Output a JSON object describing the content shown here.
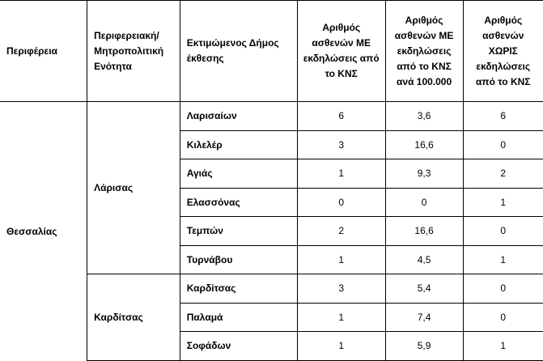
{
  "headers": [
    "Περιφέρεια",
    "Περιφερειακή/ Μητροπολιτική Ενότητα",
    "Εκτιμώμενος Δήμος έκθεσης",
    "Αριθμός ασθενών ΜΕ εκδηλώσεις από το ΚΝΣ",
    "Αριθμός ασθενών ΜΕ εκδηλώσεις από το ΚΝΣ ανά 100.000",
    "Αριθμός ασθενών ΧΩΡΙΣ εκδηλώσεις από το ΚΝΣ"
  ],
  "region": "Θεσσαλίας",
  "units": [
    {
      "name": "Λάρισας",
      "rows": [
        {
          "municipality": "Λαρισαίων",
          "with_kns": "6",
          "per_100k": "3,6",
          "without_kns": "6"
        },
        {
          "municipality": "Κιλελέρ",
          "with_kns": "3",
          "per_100k": "16,6",
          "without_kns": "0"
        },
        {
          "municipality": "Αγιάς",
          "with_kns": "1",
          "per_100k": "9,3",
          "without_kns": "2"
        },
        {
          "municipality": "Ελασσόνας",
          "with_kns": "0",
          "per_100k": "0",
          "without_kns": "1"
        },
        {
          "municipality": "Τεμπών",
          "with_kns": "2",
          "per_100k": "16,6",
          "without_kns": "0"
        },
        {
          "municipality": "Τυρνάβου",
          "with_kns": "1",
          "per_100k": "4,5",
          "without_kns": "1"
        }
      ]
    },
    {
      "name": "Καρδίτσας",
      "rows": [
        {
          "municipality": "Καρδίτσας",
          "with_kns": "3",
          "per_100k": "5,4",
          "without_kns": "0"
        },
        {
          "municipality": "Παλαμά",
          "with_kns": "1",
          "per_100k": "7,4",
          "without_kns": "0"
        },
        {
          "municipality": "Σοφάδων",
          "with_kns": "1",
          "per_100k": "5,9",
          "without_kns": "1"
        }
      ]
    }
  ]
}
